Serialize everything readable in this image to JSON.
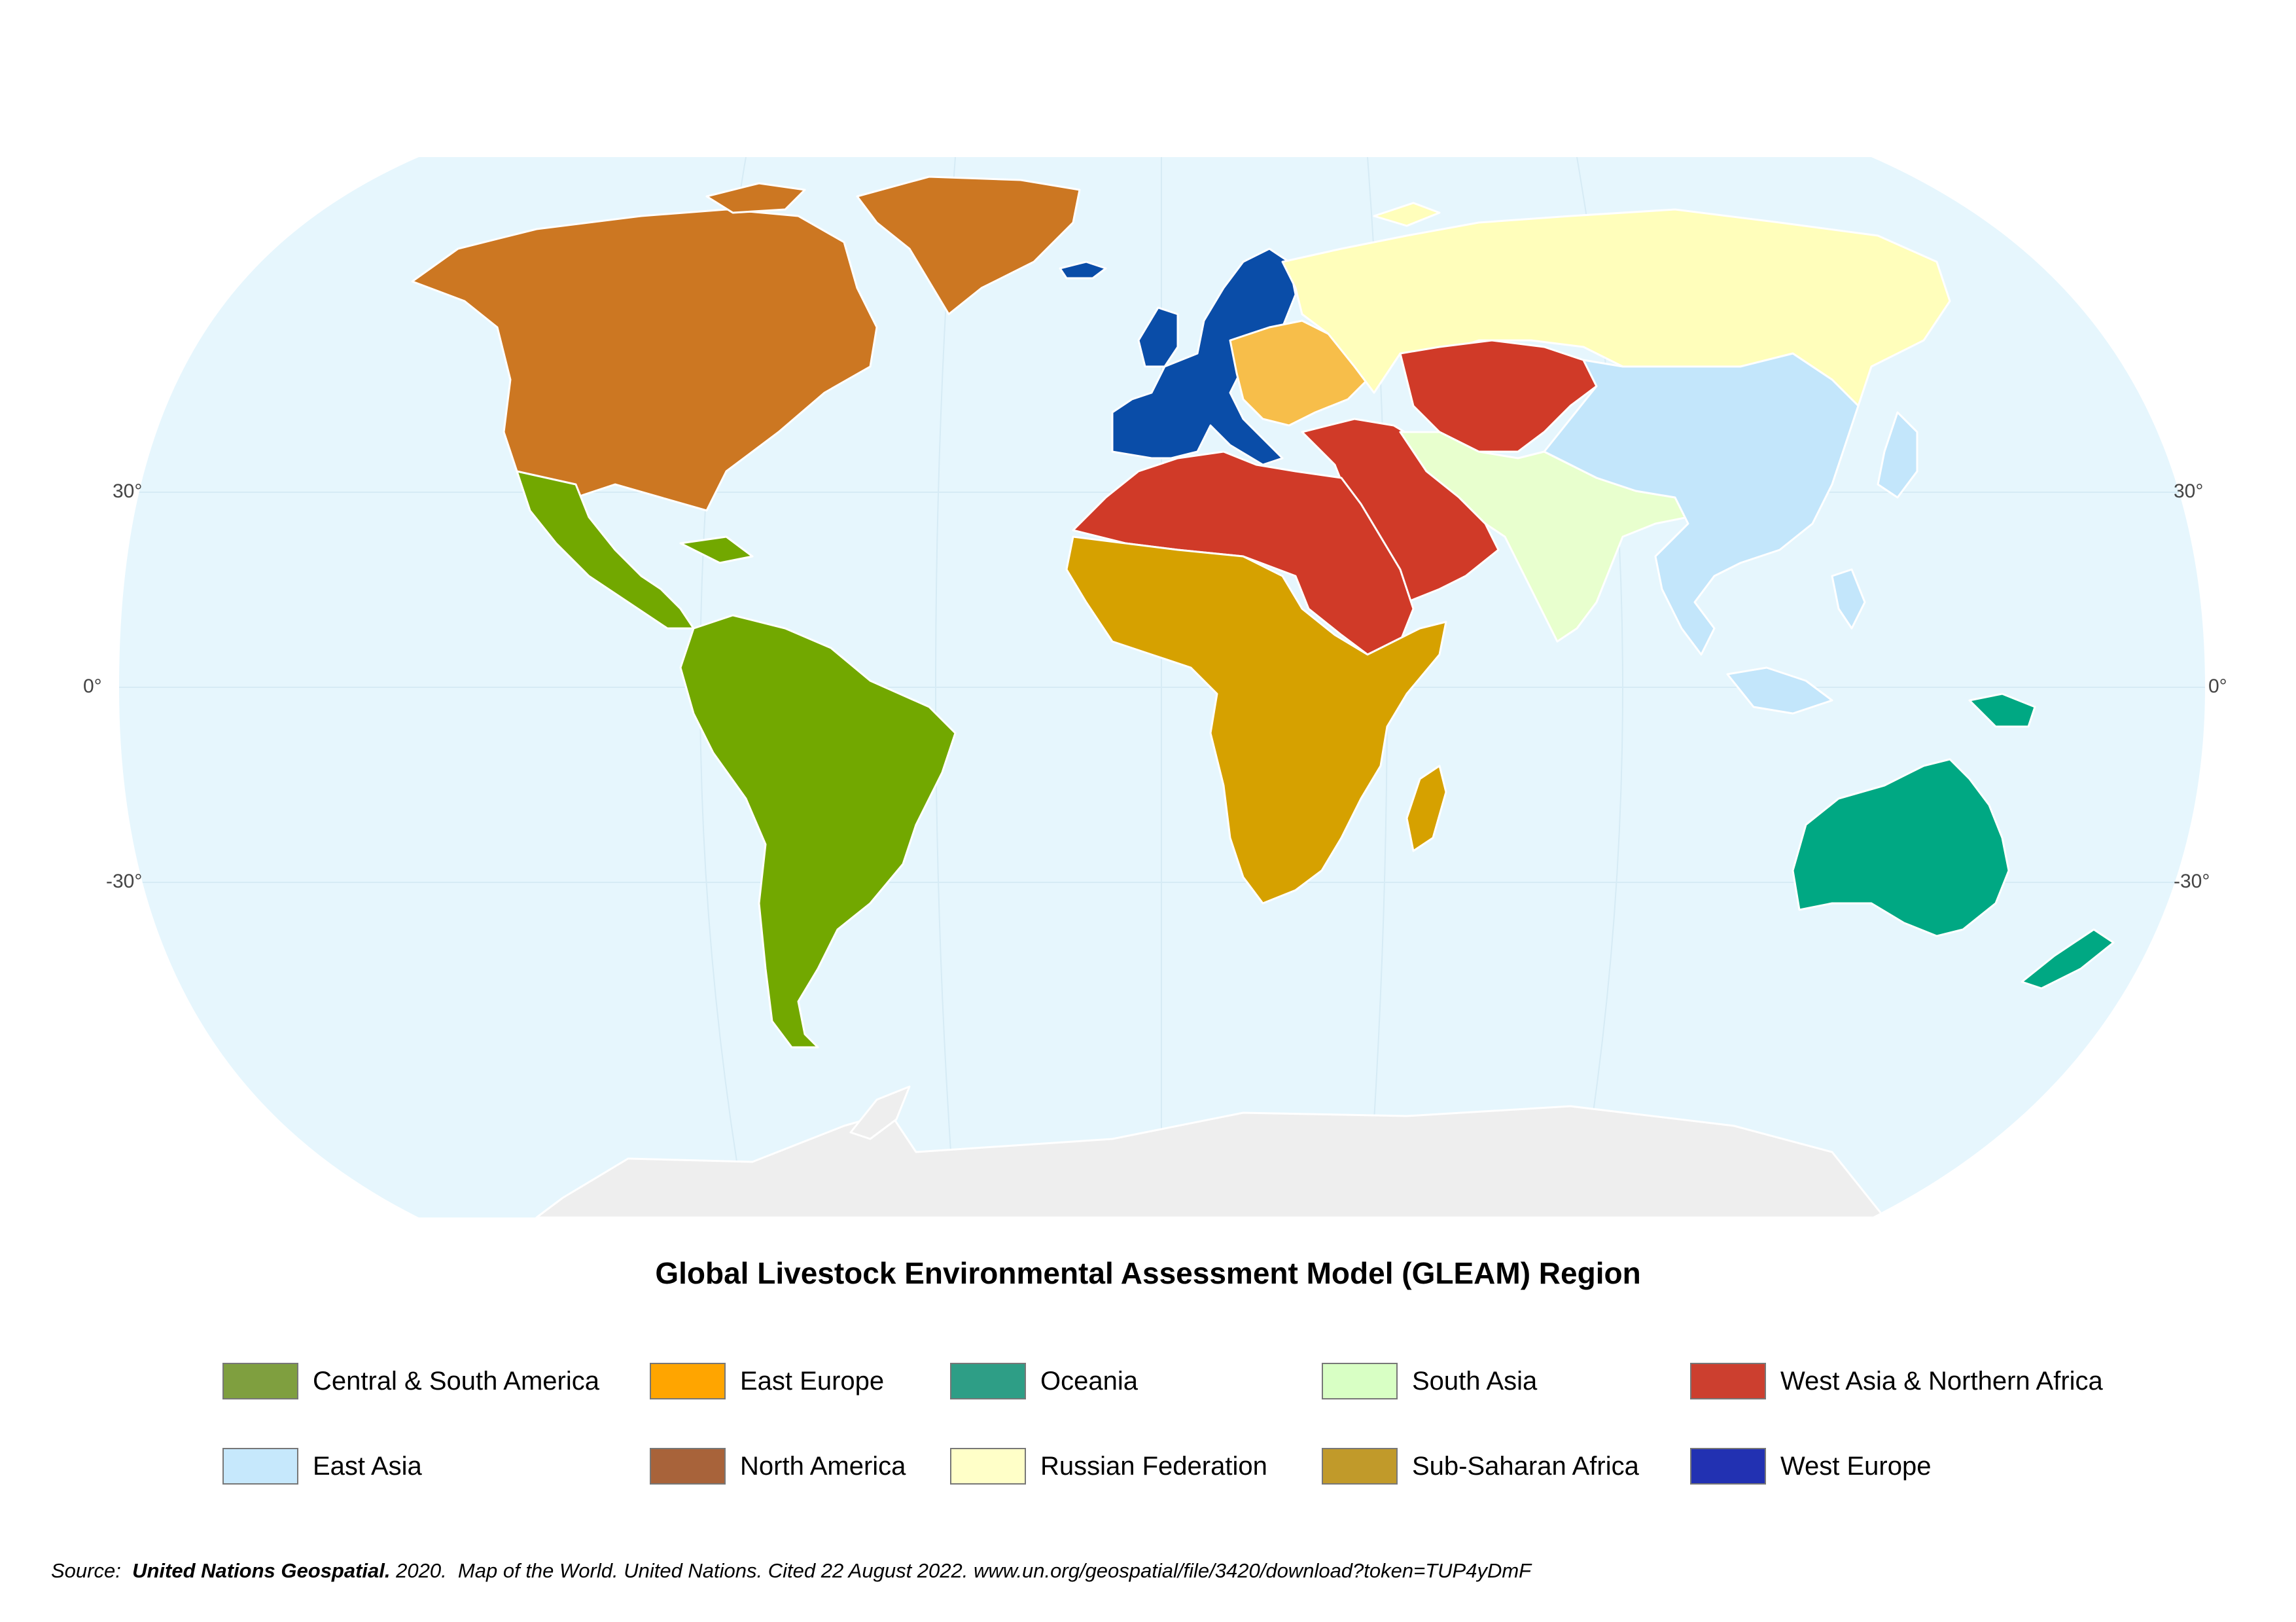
{
  "title": "Global Livestock Environmental Assessment Model (GLEAM) Region",
  "latitude_labels": {
    "lat_30": "30°",
    "lat_0": "0°",
    "lat_minus30": "-30°"
  },
  "legend": [
    {
      "label": "Central & South America",
      "color": "#7f9f3f"
    },
    {
      "label": "East Europe",
      "color": "#ffa500"
    },
    {
      "label": "Oceania",
      "color": "#2e9e86"
    },
    {
      "label": "South Asia",
      "color": "#d8ffc4"
    },
    {
      "label": "West Asia & Northern Africa",
      "color": "#cc3f2f"
    },
    {
      "label": "East Asia",
      "color": "#c6e8fc"
    },
    {
      "label": "North America",
      "color": "#a8633a"
    },
    {
      "label": "Russian Federation",
      "color": "#ffffc8"
    },
    {
      "label": "Sub-Saharan Africa",
      "color": "#c19a2a"
    },
    {
      "label": "West Europe",
      "color": "#2231b2"
    }
  ],
  "map_colors": {
    "ocean": "#e6f6fd",
    "antarctica": "#eeeeee",
    "central_south_america": "#72a800",
    "north_america": "#cc7722",
    "east_europe": "#f7be4a",
    "west_europe": "#0a4da8",
    "russian_federation": "#fffebb",
    "west_asia_northern_africa": "#d03a28",
    "sub_saharan_africa": "#d6a100",
    "south_asia": "#e8ffce",
    "east_asia": "#c3e6fb",
    "oceania": "#00a883"
  },
  "source": {
    "prefix": "Source:  ",
    "org": "United Nations Geospatial.",
    "rest": " 2020.  Map of the World. United Nations. Cited 22 August 2022. www.un.org/geospatial/file/3420/download?token=TUP4yDmF"
  }
}
